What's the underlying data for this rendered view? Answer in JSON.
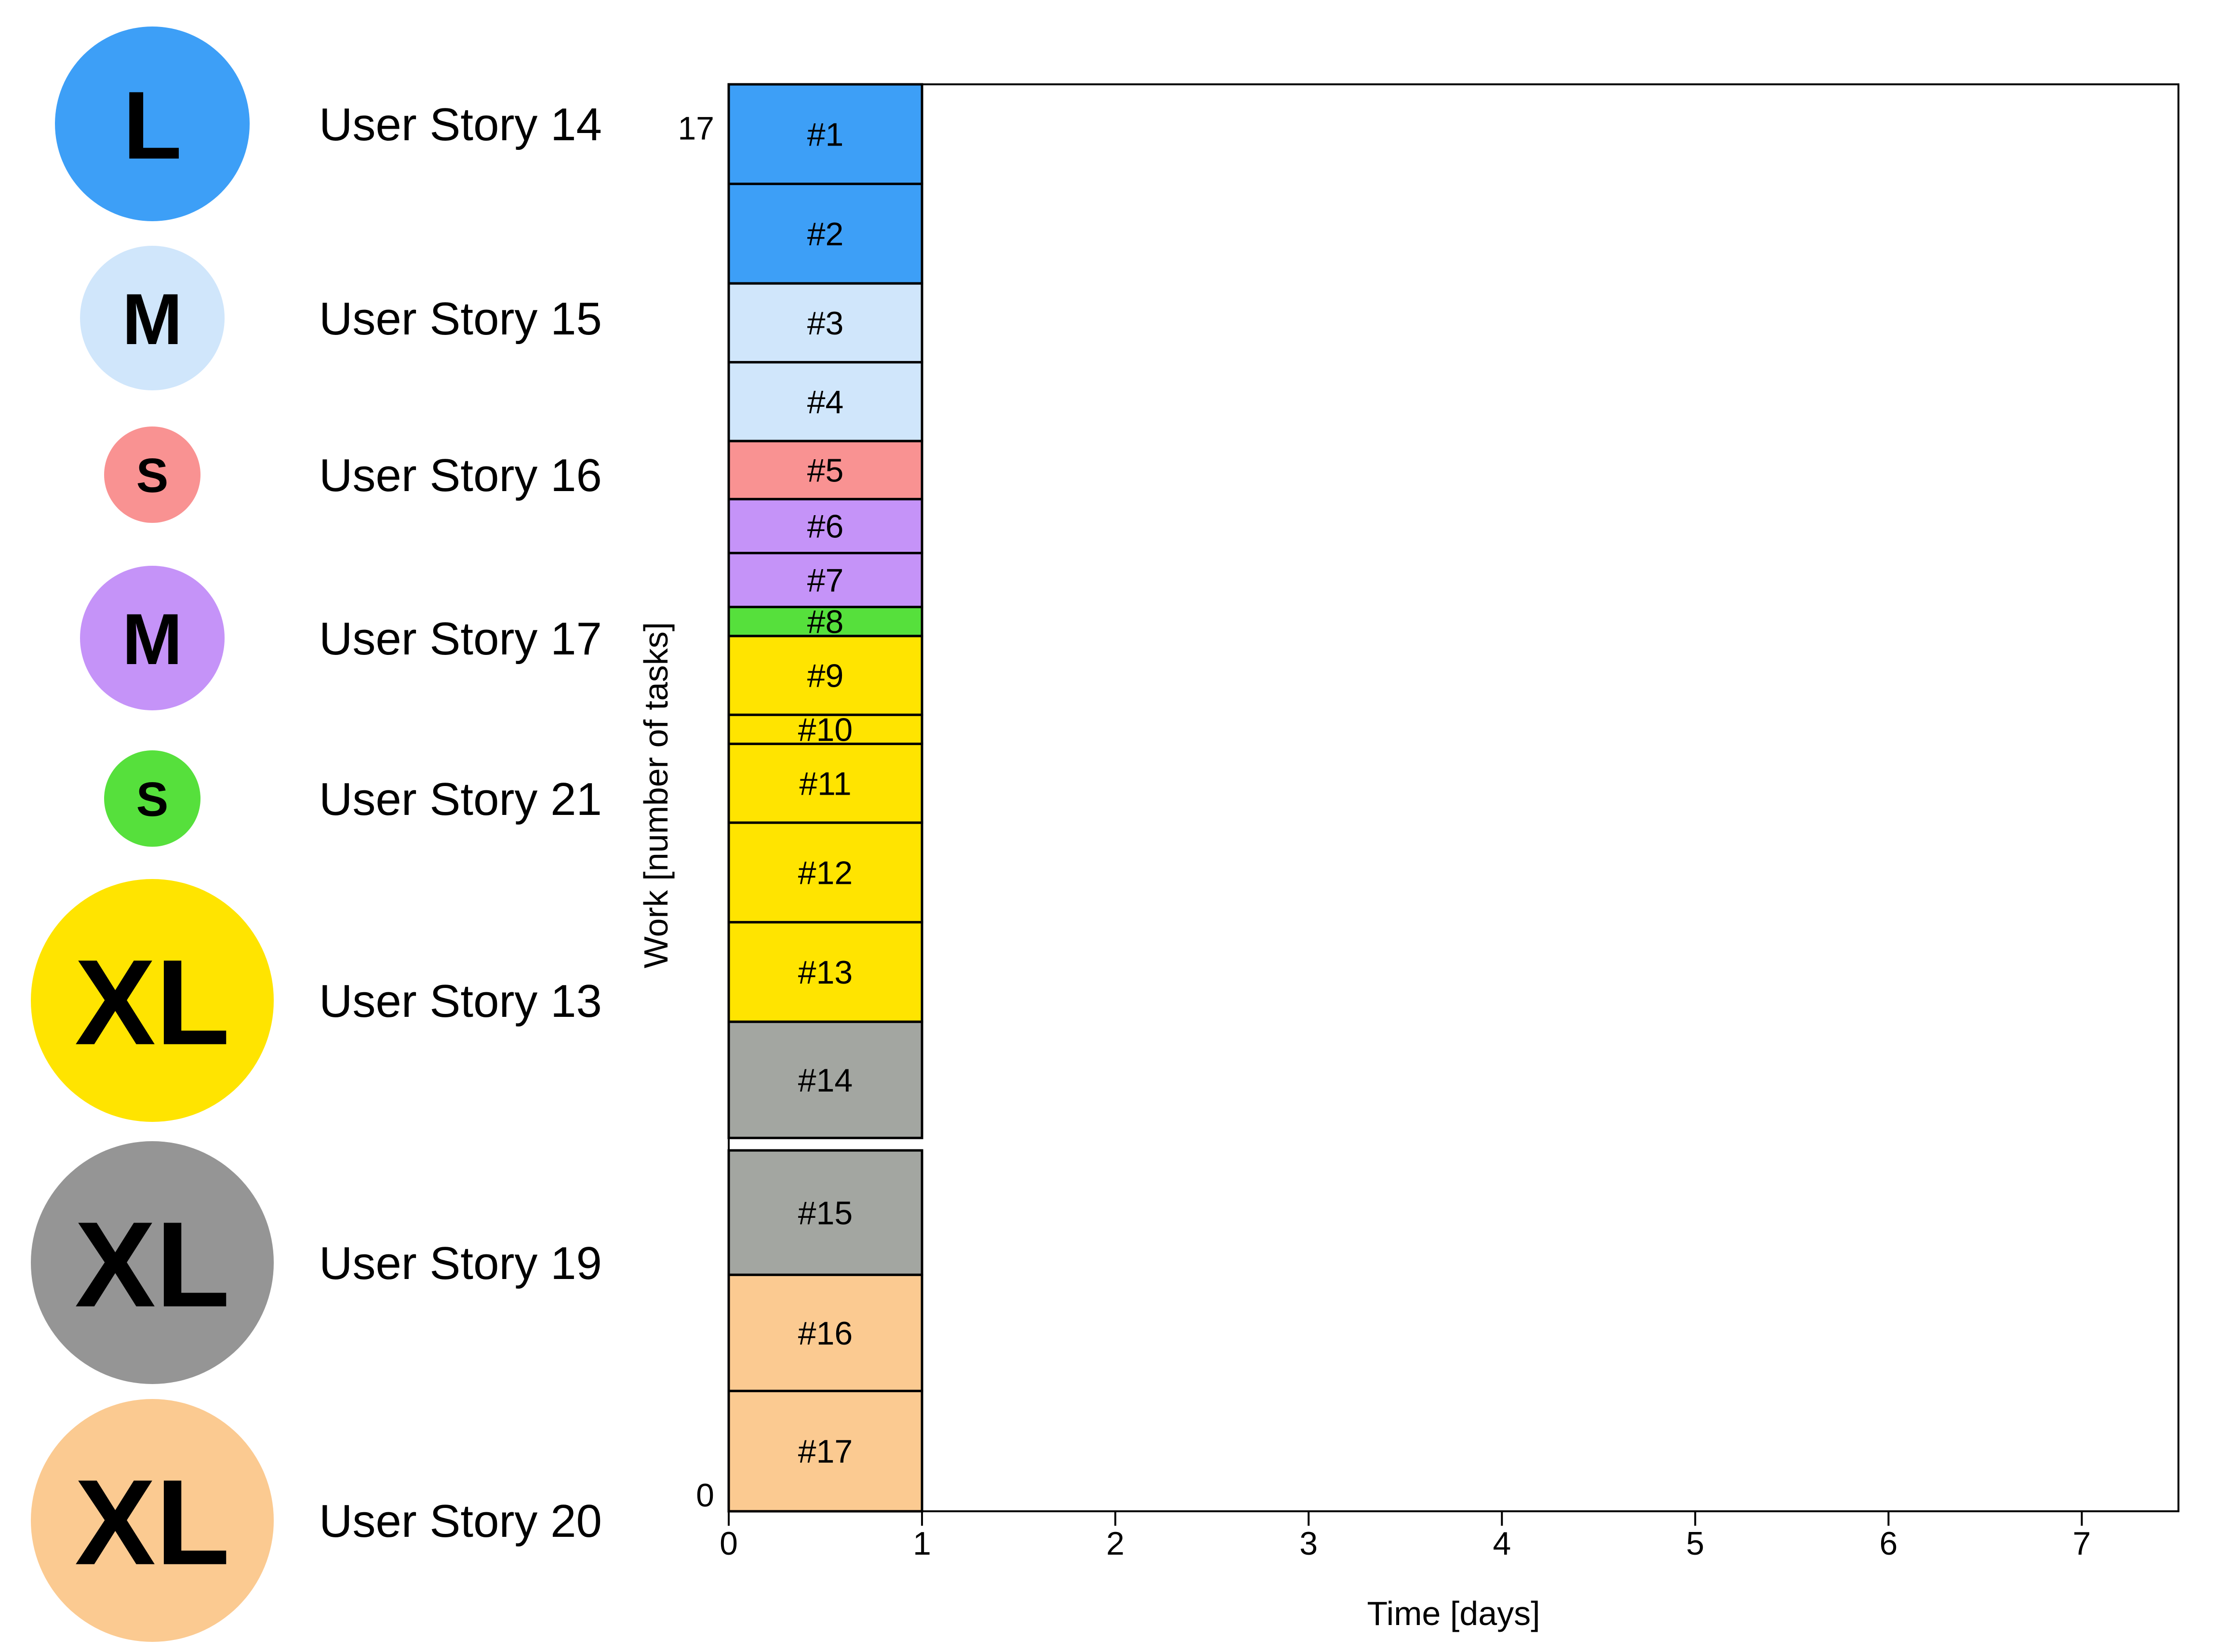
{
  "chart_data": {
    "type": "bar",
    "xlabel": "Time [days]",
    "ylabel": "Work [number of tasks]",
    "xlim": [
      0,
      7.5
    ],
    "ylim": [
      0,
      17.2
    ],
    "x_ticks": [
      "0",
      "1",
      "2",
      "3",
      "4",
      "5",
      "6",
      "7"
    ],
    "y_ticks": [
      {
        "value": 0,
        "label": "0"
      },
      {
        "value": 17,
        "label": "17"
      }
    ],
    "grid": false,
    "bar_x_range": [
      0,
      1
    ],
    "stories": [
      {
        "name": "User Story 14",
        "size": "L",
        "color": "#3d9ff7"
      },
      {
        "name": "User Story 15",
        "size": "M",
        "color": "#d0e6fb"
      },
      {
        "name": "User Story 16",
        "size": "S",
        "color": "#f99292"
      },
      {
        "name": "User Story 17",
        "size": "M",
        "color": "#c593f8"
      },
      {
        "name": "User Story 21",
        "size": "S",
        "color": "#56e03c"
      },
      {
        "name": "User Story 13",
        "size": "XL",
        "color": "#ffe400"
      },
      {
        "name": "User Story 19",
        "size": "XL",
        "color": "#959595"
      },
      {
        "name": "User Story 20",
        "size": "XL",
        "color": "#fbca91"
      }
    ],
    "tasks": [
      {
        "label": "#1",
        "start": 16.0,
        "end": 17.2,
        "color": "#3d9ff7"
      },
      {
        "label": "#2",
        "start": 14.8,
        "end": 16.0,
        "color": "#3d9ff7"
      },
      {
        "label": "#3",
        "start": 13.85,
        "end": 14.8,
        "color": "#d0e6fb"
      },
      {
        "label": "#4",
        "start": 12.9,
        "end": 13.85,
        "color": "#d0e6fb"
      },
      {
        "label": "#5",
        "start": 12.2,
        "end": 12.9,
        "color": "#f99292"
      },
      {
        "label": "#6",
        "start": 11.55,
        "end": 12.2,
        "color": "#c593f8"
      },
      {
        "label": "#7",
        "start": 10.9,
        "end": 11.55,
        "color": "#c593f8"
      },
      {
        "label": "#8",
        "start": 10.55,
        "end": 10.9,
        "color": "#56e03c"
      },
      {
        "label": "#9",
        "start": 9.6,
        "end": 10.55,
        "color": "#ffe400"
      },
      {
        "label": "#10",
        "start": 9.25,
        "end": 9.6,
        "color": "#ffe400"
      },
      {
        "label": "#11",
        "start": 8.3,
        "end": 9.25,
        "color": "#ffe400"
      },
      {
        "label": "#12",
        "start": 7.1,
        "end": 8.3,
        "color": "#ffe400"
      },
      {
        "label": "#13",
        "start": 5.9,
        "end": 7.1,
        "color": "#ffe400"
      },
      {
        "label": "#14",
        "start": 4.5,
        "end": 5.9,
        "color": "#a3a6a1"
      },
      {
        "label": "#15",
        "start": 2.85,
        "end": 4.35,
        "color": "#a3a6a1"
      },
      {
        "label": "#16",
        "start": 1.45,
        "end": 2.85,
        "color": "#fbca91"
      },
      {
        "label": "#17",
        "start": 0.0,
        "end": 1.45,
        "color": "#fbca91"
      }
    ]
  }
}
